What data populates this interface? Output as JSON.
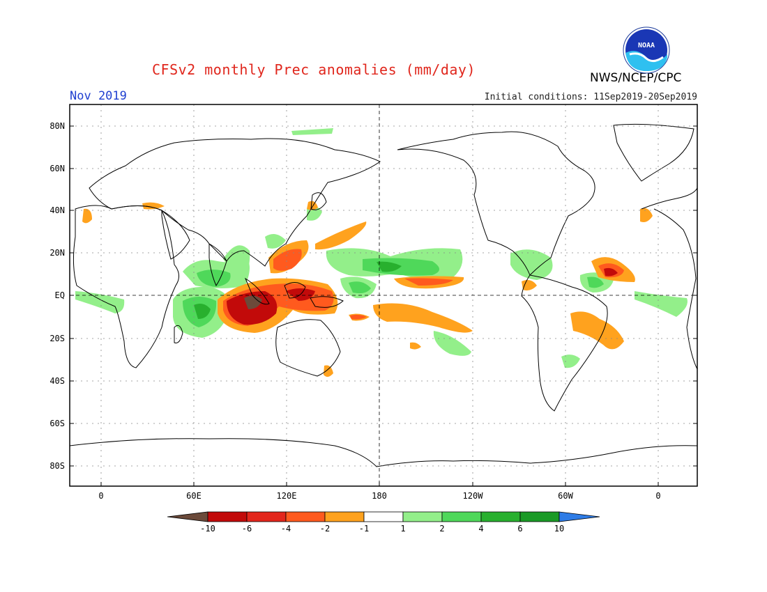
{
  "header": {
    "title": "CFSv2 monthly Prec anomalies (mm/day)",
    "month": "Nov 2019",
    "init": "Initial conditions: 11Sep2019-20Sep2019",
    "agency": "NWS/NCEP/CPC",
    "logo_text": "NOAA"
  },
  "axes": {
    "lat_labels": [
      "80N",
      "60N",
      "40N",
      "20N",
      "EQ",
      "20S",
      "40S",
      "60S",
      "80S"
    ],
    "lon_labels": [
      "0",
      "60E",
      "120E",
      "180",
      "120W",
      "60W",
      "0"
    ]
  },
  "colorbar": {
    "labels": [
      "-10",
      "-6",
      "-4",
      "-2",
      "-1",
      "1",
      "2",
      "4",
      "6",
      "10"
    ],
    "colors": [
      "#6b4a3a",
      "#c20a0a",
      "#e3261c",
      "#ff5a1e",
      "#ffa21e",
      "#ffffff",
      "#93ef8a",
      "#4fd85a",
      "#28b02e",
      "#1a9a26",
      "#2e7ce6"
    ]
  },
  "colors": {
    "title": "#e0261c",
    "month": "#1f3fd0",
    "wet_light": "#93ef8a",
    "wet_mid": "#4fd85a",
    "wet_dark": "#28b02e",
    "dry_light": "#ffa21e",
    "dry_mid": "#ff5a1e",
    "dry_dark": "#c20a0a",
    "dry_extreme": "#6b4a3a"
  }
}
